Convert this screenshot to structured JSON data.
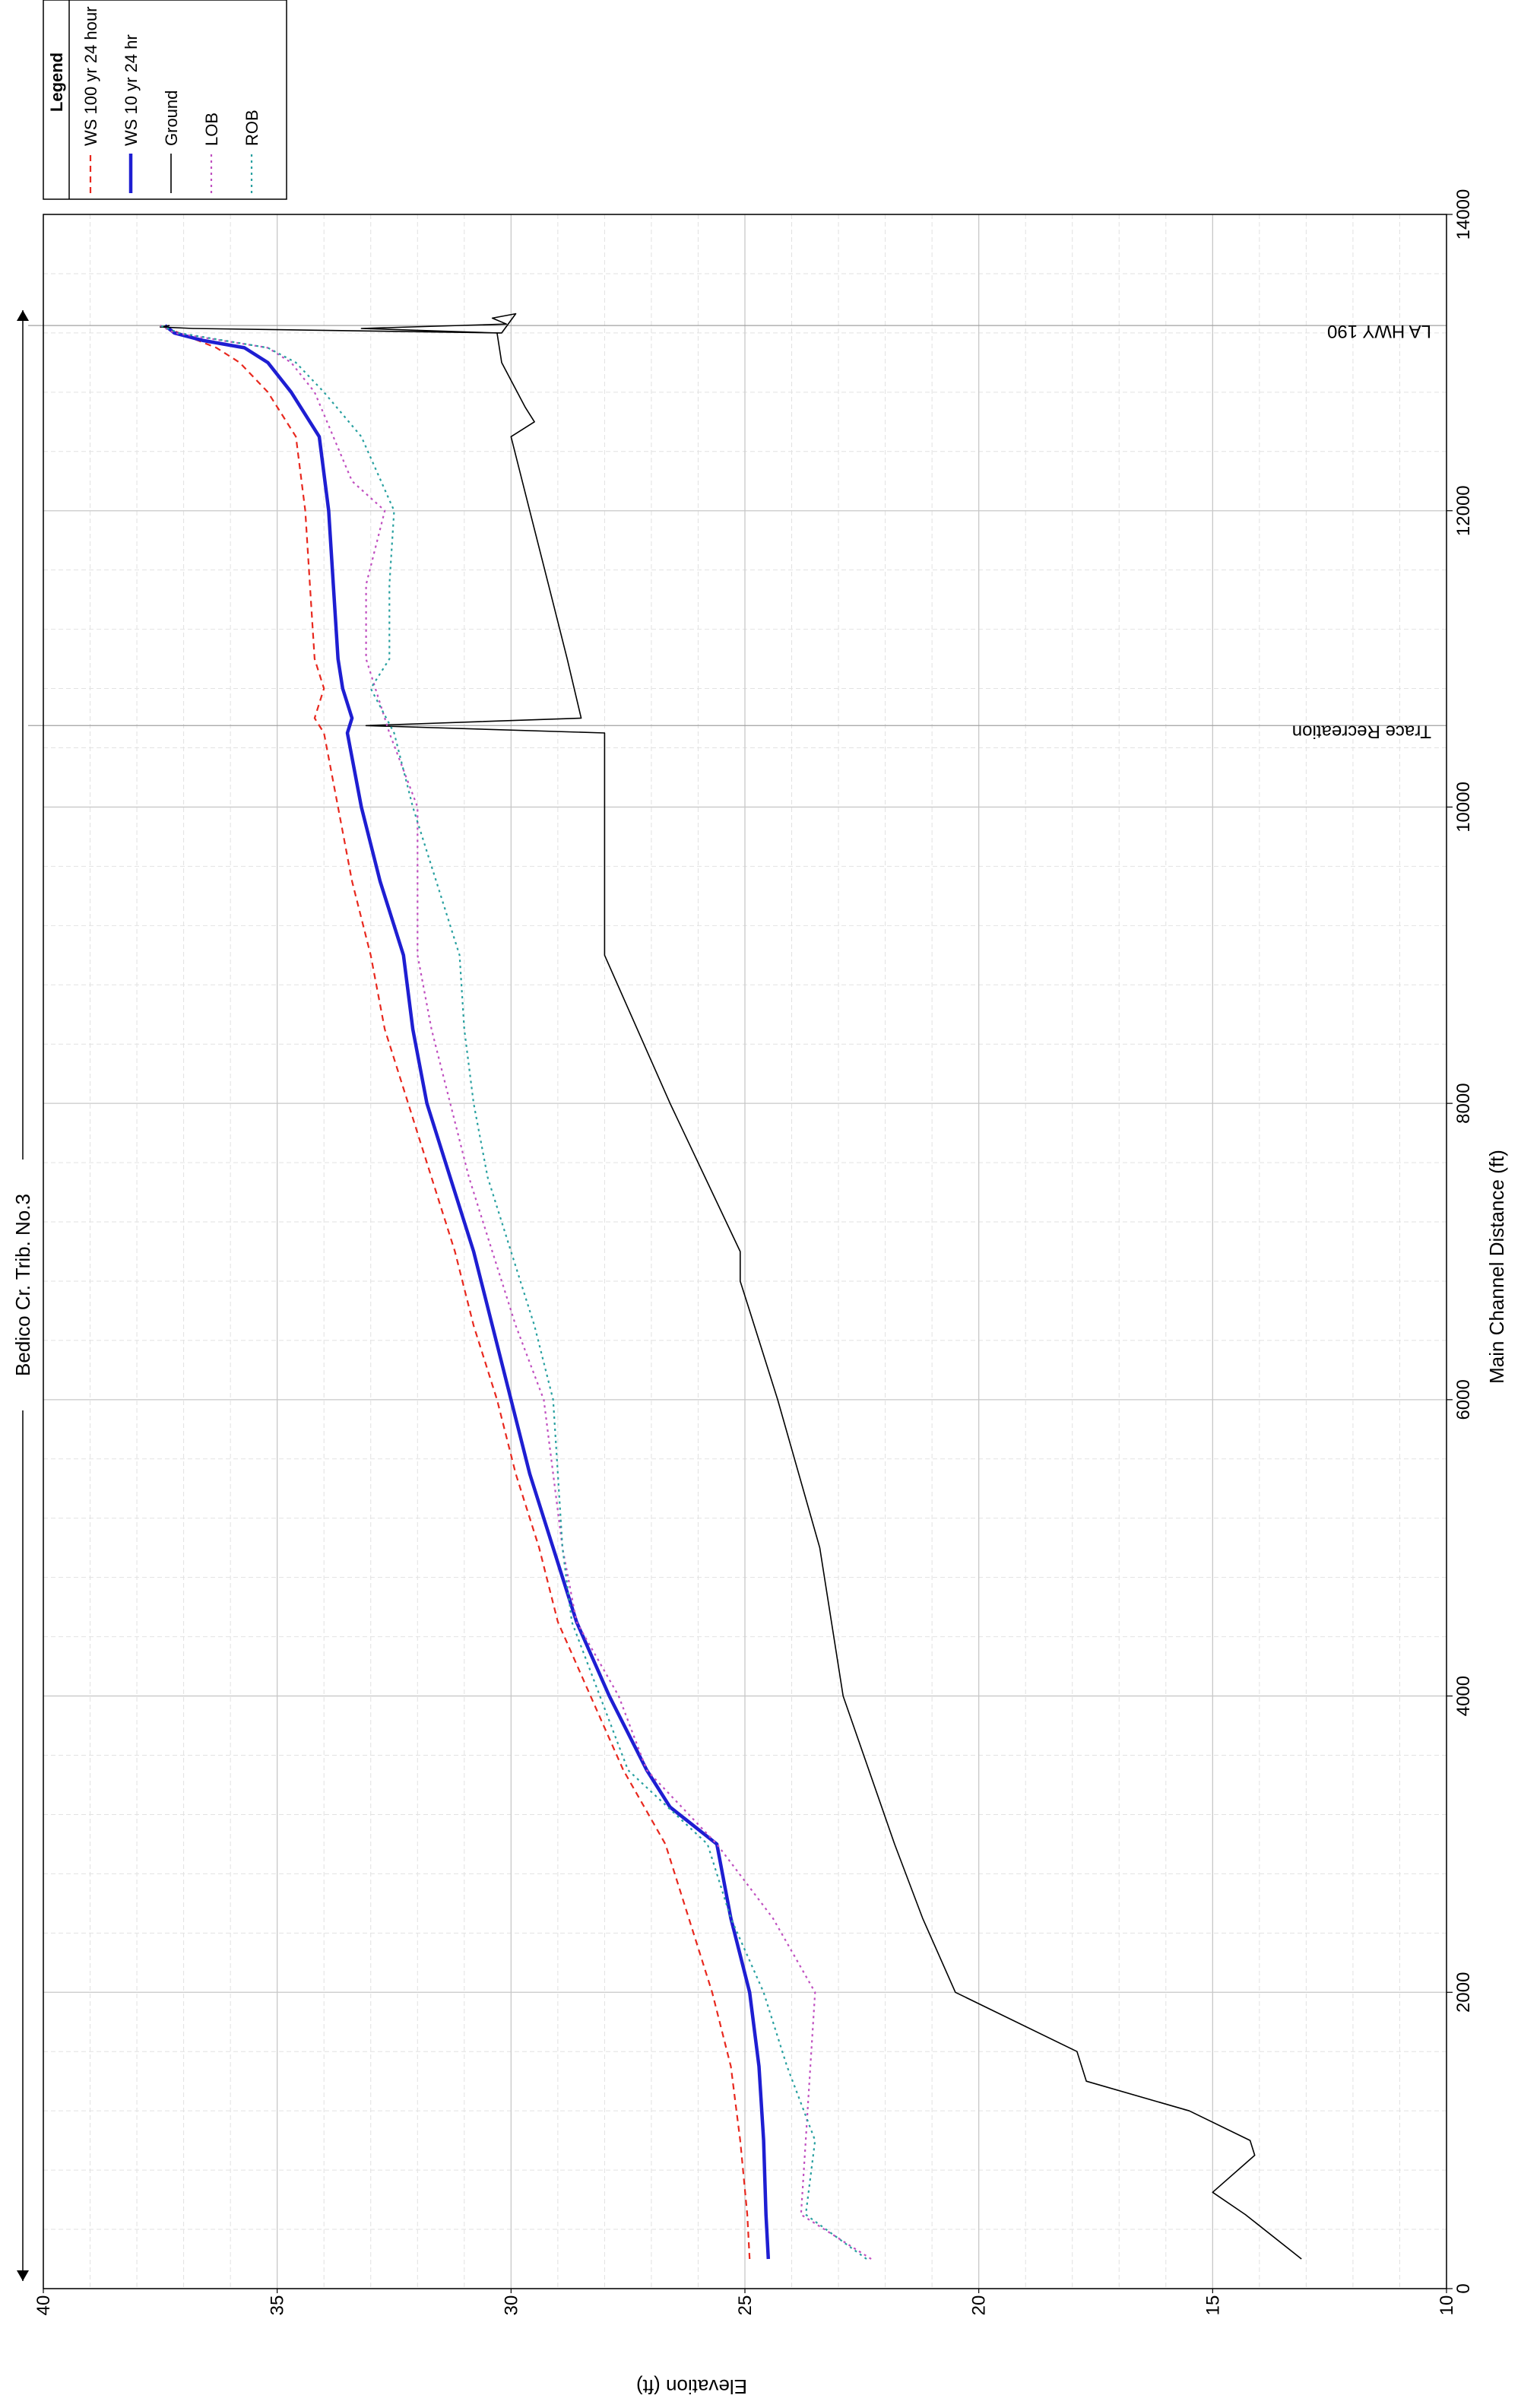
{
  "chart_data": {
    "type": "line",
    "title": "Bedico Cr. Trib. No.3",
    "xlabel": "Main Channel Distance (ft)",
    "ylabel": "Elevation (ft)",
    "xlim": [
      0,
      14000
    ],
    "ylim": [
      10,
      40
    ],
    "x_ticks": [
      0,
      2000,
      4000,
      6000,
      8000,
      10000,
      12000,
      14000
    ],
    "y_ticks": [
      10,
      15,
      20,
      25,
      30,
      35,
      40
    ],
    "grid": true,
    "orientation": "rotated-90-clockwise",
    "legend": {
      "title": "Legend",
      "placement": "top-right",
      "entries": [
        "WS  100 yr  24 hour",
        "WS  10 yr 24 hr",
        "Ground",
        "LOB",
        "ROB"
      ]
    },
    "structures": [
      {
        "name": "Trace Recreation",
        "x": 10550
      },
      {
        "name": "LA HWY 190",
        "x": 13250
      }
    ],
    "series": [
      {
        "name": "WS  100 yr  24 hour",
        "color": "#e8281e",
        "dash": "dashed",
        "x": [
          200,
          500,
          1000,
          1500,
          2000,
          2500,
          3000,
          3500,
          4000,
          4500,
          5000,
          5500,
          6000,
          6500,
          7000,
          7500,
          8000,
          8500,
          9000,
          9500,
          10000,
          10500,
          10600,
          10800,
          11000,
          11500,
          12000,
          12500,
          12800,
          13000,
          13100,
          13200,
          13250
        ],
        "y": [
          24.9,
          24.95,
          25.1,
          25.3,
          25.7,
          26.2,
          26.7,
          27.6,
          28.3,
          29.0,
          29.4,
          29.9,
          30.3,
          30.8,
          31.2,
          31.7,
          32.2,
          32.7,
          33.0,
          33.4,
          33.7,
          34.0,
          34.2,
          34.0,
          34.2,
          34.3,
          34.4,
          34.6,
          35.2,
          35.8,
          36.3,
          37.1,
          37.5
        ]
      },
      {
        "name": "WS  10 yr 24 hr",
        "color": "#1e1ed2",
        "dash": "solid",
        "x": [
          200,
          500,
          1000,
          1500,
          2000,
          2500,
          3000,
          3150,
          3250,
          3500,
          4000,
          4500,
          5000,
          5500,
          6000,
          6500,
          7000,
          7500,
          8000,
          8500,
          9000,
          9500,
          10000,
          10500,
          10600,
          10800,
          11000,
          11500,
          12000,
          12500,
          12800,
          13000,
          13100,
          13150,
          13200,
          13250
        ],
        "y": [
          24.5,
          24.55,
          24.6,
          24.7,
          24.9,
          25.3,
          25.6,
          26.2,
          26.6,
          27.1,
          27.9,
          28.6,
          29.1,
          29.6,
          30.0,
          30.4,
          30.8,
          31.3,
          31.8,
          32.1,
          32.3,
          32.8,
          33.2,
          33.5,
          33.4,
          33.6,
          33.7,
          33.8,
          33.9,
          34.1,
          34.7,
          35.2,
          35.7,
          36.6,
          37.2,
          37.4
        ]
      },
      {
        "name": "Ground",
        "color": "#000000",
        "dash": "solid",
        "x": [
          200,
          500,
          650,
          900,
          1000,
          1200,
          1400,
          1600,
          2000,
          2500,
          3000,
          4000,
          5000,
          6000,
          6600,
          6800,
          7000,
          8000,
          9000,
          10000,
          10500,
          10550,
          10600,
          11000,
          11500,
          12000,
          12500,
          12600,
          12700,
          13000,
          13200,
          13230,
          13260,
          13300,
          13330,
          13200,
          13230,
          13240,
          13250
        ],
        "y": [
          13.1,
          14.3,
          15.0,
          14.1,
          14.2,
          15.5,
          17.7,
          17.9,
          20.5,
          21.2,
          21.8,
          22.9,
          23.4,
          24.3,
          24.9,
          25.1,
          25.1,
          26.6,
          28.0,
          28.0,
          28.0,
          33.1,
          28.5,
          28.8,
          29.2,
          29.6,
          30.0,
          29.5,
          29.7,
          30.2,
          30.3,
          33.2,
          30.1,
          30.4,
          29.9,
          30.2,
          36.8,
          37.5,
          37.3
        ]
      },
      {
        "name": "LOB",
        "color": "#c050c0",
        "dash": "dotted",
        "x": [
          200,
          500,
          1000,
          1500,
          2000,
          2500,
          3000,
          3500,
          4000,
          4500,
          5000,
          5500,
          6000,
          6500,
          7000,
          7500,
          8000,
          8500,
          9000,
          9500,
          10000,
          10500,
          11000,
          11500,
          12000,
          12200,
          12500,
          12800,
          13000,
          13100,
          13200,
          13250
        ],
        "y": [
          22.3,
          23.8,
          23.7,
          23.6,
          23.5,
          24.4,
          25.6,
          27.1,
          27.7,
          28.6,
          28.9,
          29.1,
          29.3,
          29.9,
          30.4,
          30.9,
          31.3,
          31.7,
          32.0,
          32.0,
          32.0,
          32.6,
          33.1,
          33.1,
          32.7,
          33.4,
          33.8,
          34.2,
          34.7,
          35.2,
          37.2,
          37.5
        ]
      },
      {
        "name": "ROB",
        "color": "#28a0a0",
        "dash": "dotted",
        "x": [
          200,
          500,
          1000,
          1500,
          2000,
          2500,
          3000,
          3500,
          4000,
          4500,
          5000,
          5500,
          6000,
          6500,
          7000,
          7500,
          8000,
          8500,
          9000,
          9500,
          10000,
          10500,
          10800,
          11000,
          11500,
          12000,
          12500,
          12800,
          13000,
          13100,
          13200,
          13250
        ],
        "y": [
          22.4,
          23.7,
          23.5,
          24.1,
          24.6,
          25.3,
          25.8,
          27.5,
          28.1,
          28.7,
          28.9,
          29.0,
          29.1,
          29.5,
          30.0,
          30.5,
          30.8,
          31.0,
          31.1,
          31.6,
          32.1,
          32.5,
          33.0,
          32.6,
          32.6,
          32.5,
          33.2,
          34.0,
          34.6,
          35.2,
          37.1,
          37.5
        ]
      }
    ]
  }
}
